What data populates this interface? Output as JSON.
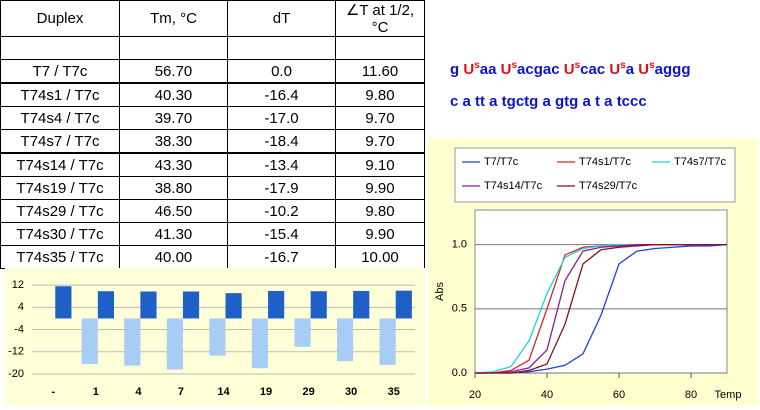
{
  "table": {
    "header": [
      "Duplex",
      "Tm, °C",
      "dT",
      "∠T at 1/2, °C"
    ],
    "rows": [
      [
        "T7 / T7c",
        "56.70",
        "0.0",
        "11.60"
      ],
      [
        "T74s1 / T7c",
        "40.30",
        "-16.4",
        "9.80"
      ],
      [
        "T74s4 / T7c",
        "39.70",
        "-17.0",
        "9.70"
      ],
      [
        "T74s7 / T7c",
        "38.30",
        "-18.4",
        "9.70"
      ],
      [
        "T74s14 / T7c",
        "43.30",
        "-13.4",
        "9.10"
      ],
      [
        "T74s19 / T7c",
        "38.80",
        "-17.9",
        "9.90"
      ],
      [
        "T74s29 / T7c",
        "46.50",
        "-10.2",
        "9.80"
      ],
      [
        "T74s30 / T7c",
        "41.30",
        "-15.4",
        "9.90"
      ],
      [
        "T74s35 / T7c",
        "40.00",
        "-16.7",
        "10.00"
      ]
    ]
  },
  "sequence": [
    "g Usaa Usacgac Uscac Usa Usaggg",
    "c a tt a tgctg a gtg a t a tccc"
  ],
  "chart_data": [
    {
      "type": "bar",
      "categories": [
        "-",
        "1",
        "4",
        "7",
        "14",
        "19",
        "29",
        "30",
        "35"
      ],
      "series": [
        {
          "color": "#a8cdf4",
          "values": [
            0.0,
            -16.4,
            -17.0,
            -18.4,
            -13.4,
            -17.9,
            -10.2,
            -15.4,
            -16.7
          ]
        },
        {
          "color": "#1f5fc8",
          "values": [
            11.6,
            9.8,
            9.7,
            9.7,
            9.1,
            9.9,
            9.8,
            9.9,
            10.0
          ]
        }
      ],
      "ylim": [
        -20,
        16
      ],
      "yticks": [
        12,
        4,
        -4,
        -12,
        -20
      ],
      "grid": true
    },
    {
      "type": "line",
      "x_label": "Temp",
      "y_label": "Abs",
      "x": [
        20,
        25,
        30,
        35,
        40,
        45,
        50,
        55,
        60,
        65,
        70,
        75,
        80,
        85,
        90
      ],
      "series": [
        {
          "name": "T7/T7c",
          "color": "#1f3fdc",
          "values": [
            0,
            0,
            0,
            0.01,
            0.03,
            0.06,
            0.15,
            0.45,
            0.85,
            0.95,
            0.97,
            0.98,
            0.99,
            0.99,
            1.0
          ]
        },
        {
          "name": "T74s1/T7c",
          "color": "#e02020",
          "values": [
            0,
            0,
            0.02,
            0.1,
            0.5,
            0.92,
            0.98,
            0.99,
            0.99,
            1.0,
            1.0,
            1.0,
            1.0,
            1.0,
            1.0
          ]
        },
        {
          "name": "T74s7/T7c",
          "color": "#20d0e0",
          "values": [
            0,
            0.01,
            0.05,
            0.25,
            0.62,
            0.9,
            0.97,
            0.99,
            1.0,
            1.0,
            1.0,
            1.0,
            1.0,
            1.0,
            1.0
          ]
        },
        {
          "name": "T74s14/T7c",
          "color": "#8a1a9a",
          "values": [
            0,
            0,
            0.01,
            0.04,
            0.18,
            0.72,
            0.95,
            0.98,
            0.99,
            1.0,
            1.0,
            1.0,
            1.0,
            1.0,
            1.0
          ]
        },
        {
          "name": "T74s29/T7c",
          "color": "#8a1020",
          "values": [
            0,
            0,
            0,
            0.02,
            0.07,
            0.38,
            0.85,
            0.96,
            0.98,
            0.99,
            1.0,
            1.0,
            1.0,
            1.0,
            1.0
          ]
        }
      ],
      "xlim": [
        20,
        90
      ],
      "xticks": [
        20,
        40,
        60,
        80
      ],
      "ylim": [
        0,
        1.27
      ],
      "yticks": [
        {
          "value": 0,
          "label": "0.0"
        },
        {
          "value": 0.5,
          "label": "0.5"
        },
        {
          "value": 1.0,
          "label": "1.0"
        }
      ],
      "grid": true,
      "legend": "top"
    }
  ]
}
